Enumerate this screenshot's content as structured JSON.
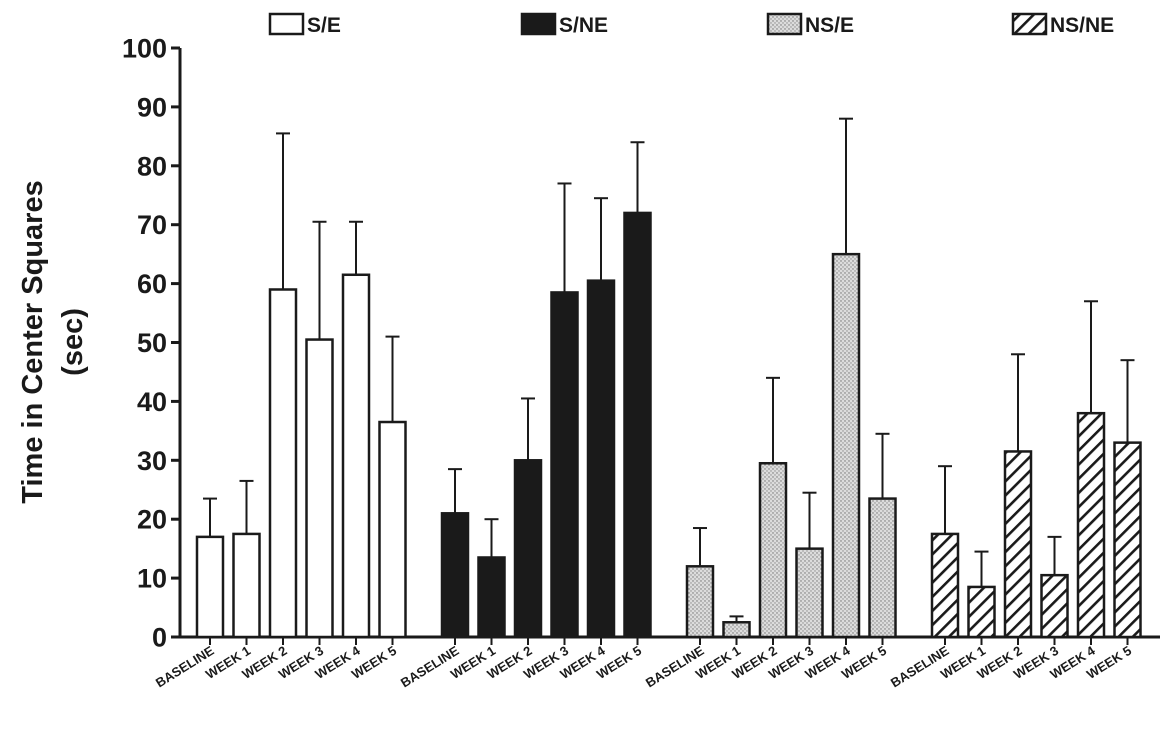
{
  "chart_data": {
    "type": "bar",
    "ylabel_line1": "Time in Center Squares",
    "ylabel_line2": "(sec)",
    "ylim": [
      0,
      100
    ],
    "yticks": [
      0,
      10,
      20,
      30,
      40,
      50,
      60,
      70,
      80,
      90,
      100
    ],
    "categories": [
      "BASELINE",
      "WEEK 1",
      "WEEK 2",
      "WEEK 3",
      "WEEK 4",
      "WEEK 5"
    ],
    "legend_position": "top",
    "error_bars": "upper",
    "series": [
      {
        "name": "S/E",
        "style": "white",
        "values": [
          17,
          17.5,
          59,
          50.5,
          61.5,
          36.5
        ],
        "errors": [
          6.5,
          9,
          26.5,
          20,
          9,
          14.5
        ]
      },
      {
        "name": "S/NE",
        "style": "black",
        "values": [
          21,
          13.5,
          30,
          58.5,
          60.5,
          72
        ],
        "errors": [
          7.5,
          6.5,
          10.5,
          18.5,
          14,
          12
        ]
      },
      {
        "name": "NS/E",
        "style": "dotted",
        "values": [
          12,
          2.5,
          29.5,
          15,
          65,
          23.5
        ],
        "errors": [
          6.5,
          1,
          14.5,
          9.5,
          23,
          11
        ]
      },
      {
        "name": "NS/NE",
        "style": "hatched",
        "values": [
          17.5,
          8.5,
          31.5,
          10.5,
          38,
          33
        ],
        "errors": [
          11.5,
          6,
          16.5,
          6.5,
          19,
          14
        ]
      }
    ]
  }
}
